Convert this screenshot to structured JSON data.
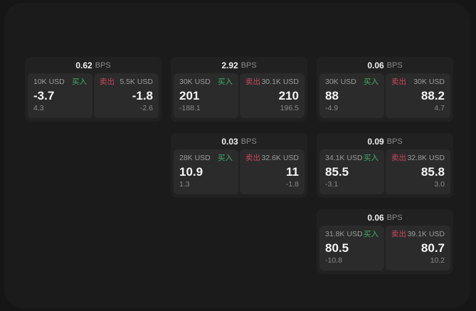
{
  "labels": {
    "buy": "买入",
    "sell": "卖出",
    "bps_unit": "BPS"
  },
  "colors": {
    "buy_green": "#3fae6c",
    "sell_red": "#c8485f",
    "surface": "#1b1b1b",
    "card": "#212121",
    "side_panel": "#2b2b2b",
    "value_text": "#f5f5f5",
    "muted_text": "#8a8a8a"
  },
  "cards": [
    {
      "bps": "0.62",
      "col": 1,
      "row": 1,
      "buy": {
        "size": "10K USD",
        "value": "-3.7",
        "delta": "4.3"
      },
      "sell": {
        "size": "5.5K USD",
        "value": "-1.8",
        "delta": "-2.6"
      }
    },
    {
      "bps": "2.92",
      "col": 2,
      "row": 1,
      "buy": {
        "size": "30K USD",
        "value": "201",
        "delta": "-188.1"
      },
      "sell": {
        "size": "30.1K USD",
        "value": "210",
        "delta": "196.5"
      }
    },
    {
      "bps": "0.06",
      "col": 3,
      "row": 1,
      "buy": {
        "size": "30K USD",
        "value": "88",
        "delta": "-4.9"
      },
      "sell": {
        "size": "30K USD",
        "value": "88.2",
        "delta": "4.7"
      }
    },
    {
      "bps": "0.03",
      "col": 2,
      "row": 2,
      "buy": {
        "size": "28K USD",
        "value": "10.9",
        "delta": "1.3"
      },
      "sell": {
        "size": "32.6K USD",
        "value": "11",
        "delta": "-1.8"
      }
    },
    {
      "bps": "0.09",
      "col": 3,
      "row": 2,
      "buy": {
        "size": "34.1K USD",
        "value": "85.5",
        "delta": "-3.1"
      },
      "sell": {
        "size": "32.8K USD",
        "value": "85.8",
        "delta": "3.0"
      }
    },
    {
      "bps": "0.06",
      "col": 3,
      "row": 3,
      "buy": {
        "size": "31.8K USD",
        "value": "80.5",
        "delta": "-10.8"
      },
      "sell": {
        "size": "39.1K USD",
        "value": "80.7",
        "delta": "10.2"
      }
    }
  ]
}
